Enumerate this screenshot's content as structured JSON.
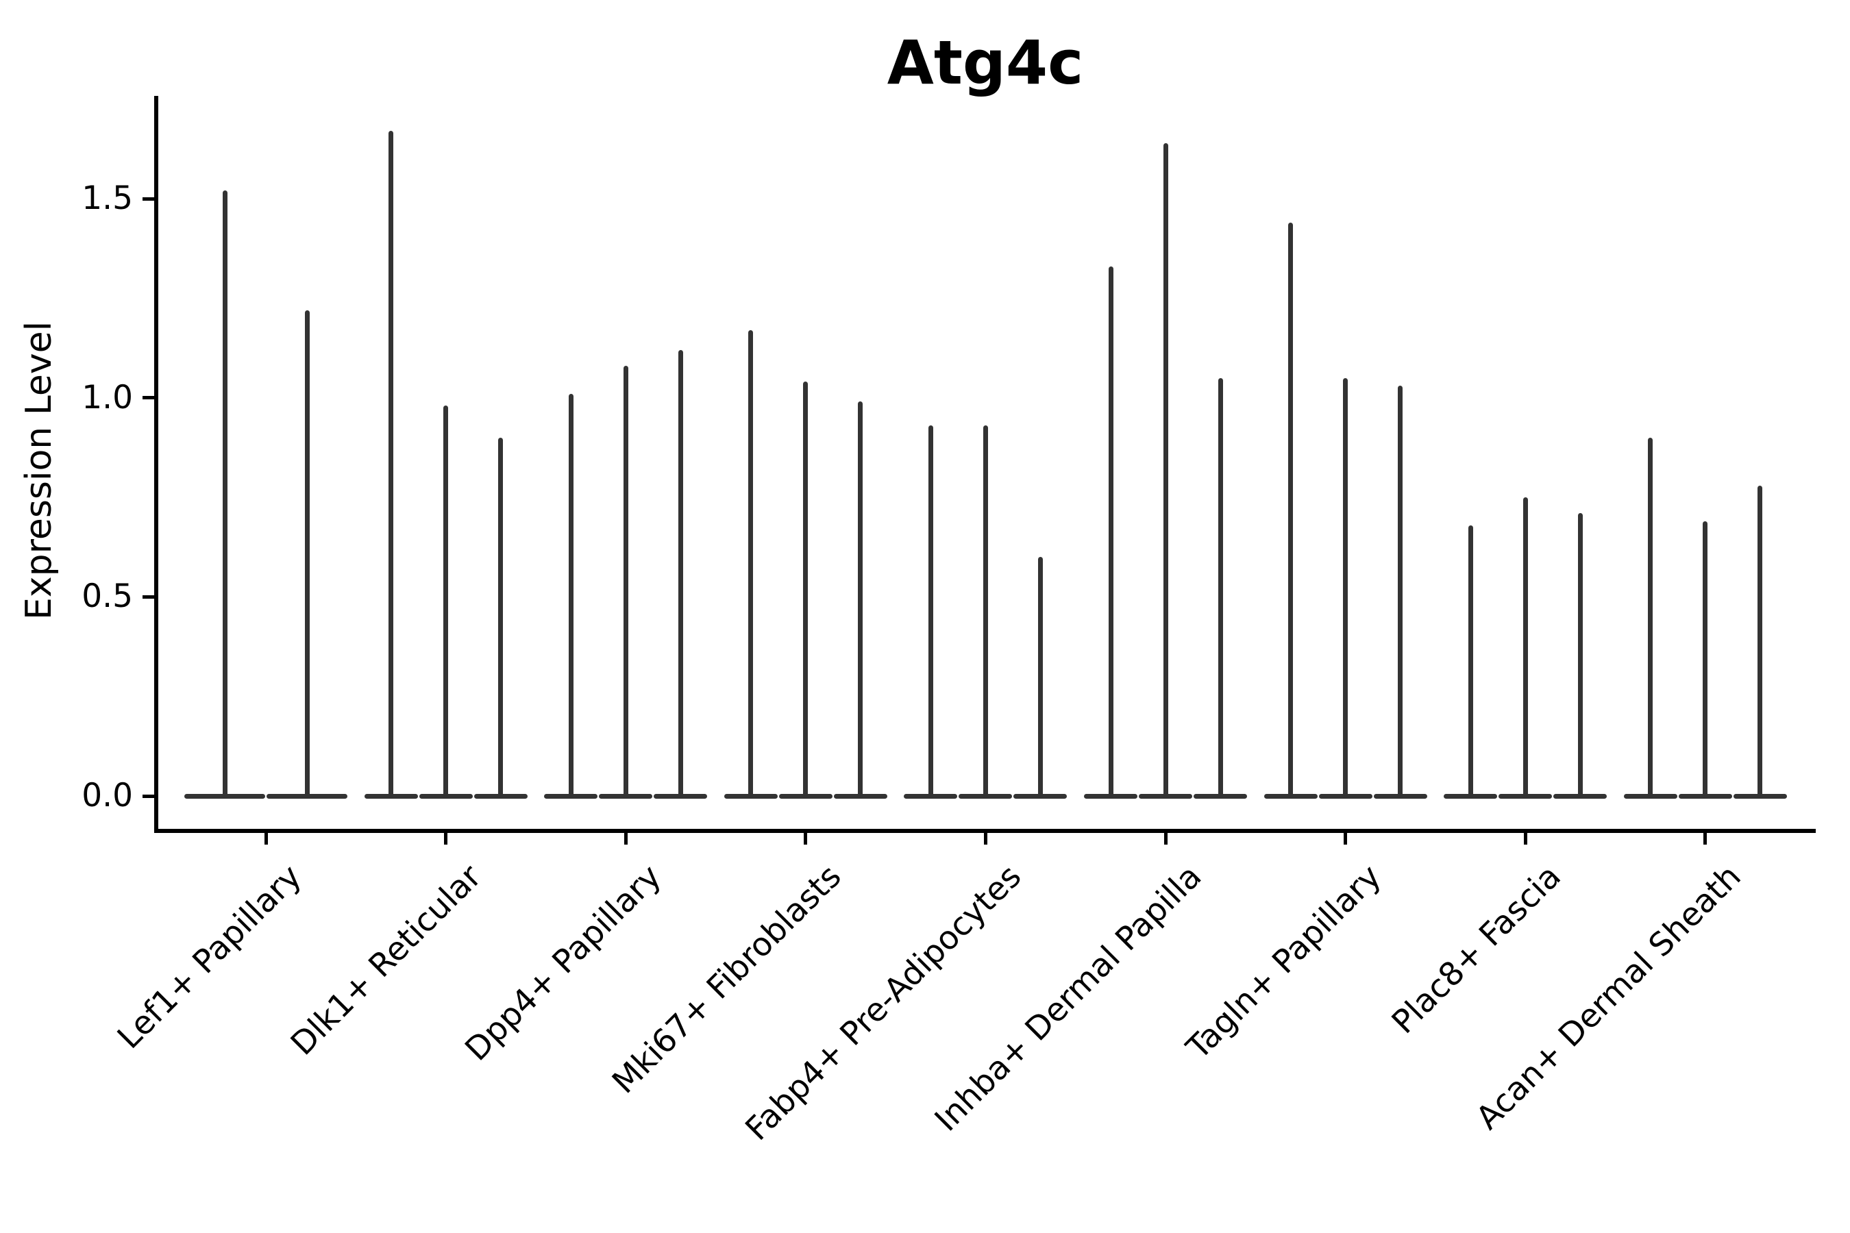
{
  "title": "Atg4c",
  "y_axis": {
    "label": "Expression Level",
    "tick_labels": [
      "0.0",
      "0.5",
      "1.0",
      "1.5"
    ]
  },
  "chart_data": {
    "type": "violin",
    "title": "Atg4c",
    "ylabel": "Expression Level",
    "xlabel": "",
    "yticks": [
      0.0,
      0.5,
      1.0,
      1.5
    ],
    "ytick_labels": [
      "0.0",
      "0.5",
      "1.0",
      "1.5"
    ],
    "ylim": [
      -0.08,
      1.76
    ],
    "grid": false,
    "legend": false,
    "x_tick_label_rotation_deg": 45,
    "violin_style": "zero-concentrated distributions: wide flat base at 0 with a thin spike up to the max expression value",
    "line_color": "#333333",
    "spine_color": "#000000",
    "background_color": "#ffffff",
    "categories": [
      "Lef1+ Papillary",
      "Dlk1+ Reticular",
      "Dpp4+ Papillary",
      "Mki67+ Fibroblasts",
      "Fabp4+ Pre-Adipocytes",
      "Inhba+ Dermal Papilla",
      "Tagln+ Papillary",
      "Plac8+ Fascia",
      "Acan+ Dermal Sheath"
    ],
    "groups": [
      {
        "category": "Lef1+ Papillary",
        "violin_max": [
          1.52,
          1.22
        ]
      },
      {
        "category": "Dlk1+ Reticular",
        "violin_max": [
          1.67,
          0.98,
          0.9
        ]
      },
      {
        "category": "Dpp4+ Papillary",
        "violin_max": [
          1.01,
          1.08,
          1.12
        ]
      },
      {
        "category": "Mki67+ Fibroblasts",
        "violin_max": [
          1.17,
          1.04,
          0.99
        ]
      },
      {
        "category": "Fabp4+ Pre-Adipocytes",
        "violin_max": [
          0.93,
          0.93,
          0.6
        ]
      },
      {
        "category": "Inhba+ Dermal Papilla",
        "violin_max": [
          1.33,
          1.64,
          1.05
        ]
      },
      {
        "category": "Tagln+ Papillary",
        "violin_max": [
          1.44,
          1.05,
          1.03
        ]
      },
      {
        "category": "Plac8+ Fascia",
        "violin_max": [
          0.68,
          0.75,
          0.71
        ]
      },
      {
        "category": "Acan+ Dermal Sheath",
        "violin_max": [
          0.9,
          0.69,
          0.78
        ]
      }
    ]
  }
}
